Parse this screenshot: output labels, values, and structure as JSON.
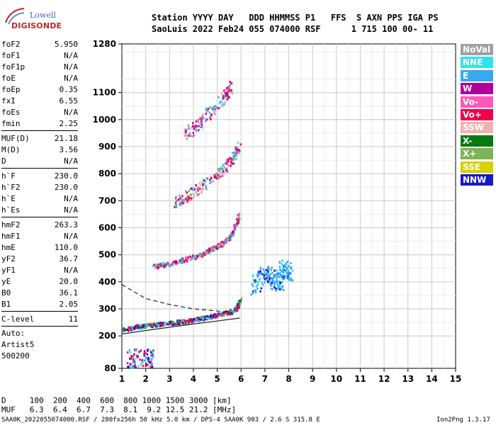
{
  "logo": {
    "line1": "Lowell",
    "line2": "DIGISONDE"
  },
  "header": {
    "labels": "Station YYYY DAY   DDD HHMMSS P1   FFS  S AXN PPS IGA PS",
    "values": "SaoLuis 2022 Feb24 055 074000 RSF      1 715 100 00- 11"
  },
  "params": {
    "group1": [
      {
        "label": "foF2",
        "value": "5.950"
      },
      {
        "label": "foF1",
        "value": "N/A"
      },
      {
        "label": "foF1p",
        "value": "N/A"
      },
      {
        "label": "foE",
        "value": "N/A"
      },
      {
        "label": "foEp",
        "value": "0.35"
      },
      {
        "label": "fxI",
        "value": "6.55"
      },
      {
        "label": "foEs",
        "value": "N/A"
      },
      {
        "label": "fmin",
        "value": "2.25"
      }
    ],
    "group2": [
      {
        "label": "MUF(D)",
        "value": "21.18"
      },
      {
        "label": "M(D)",
        "value": "3.56"
      },
      {
        "label": "D",
        "value": "N/A"
      }
    ],
    "group3": [
      {
        "label": "h`F",
        "value": "230.0"
      },
      {
        "label": "h`F2",
        "value": "230.0"
      },
      {
        "label": "h`E",
        "value": "N/A"
      },
      {
        "label": "h`Es",
        "value": "N/A"
      }
    ],
    "group4": [
      {
        "label": "hmF2",
        "value": "263.3"
      },
      {
        "label": "hmF1",
        "value": "N/A"
      },
      {
        "label": "hmE",
        "value": "110.0"
      },
      {
        "label": "yF2",
        "value": "36.7"
      },
      {
        "label": "yF1",
        "value": "N/A"
      },
      {
        "label": "yE",
        "value": "20.0"
      },
      {
        "label": "B0",
        "value": "36.1"
      },
      {
        "label": "B1",
        "value": "2.05"
      }
    ],
    "clevel": {
      "label": "C-level",
      "value": "11"
    },
    "auto": [
      "Auto:",
      "Artist5",
      "500200"
    ]
  },
  "legend": [
    {
      "label": "NoVal",
      "color": "#a0a0a0"
    },
    {
      "label": "NNE",
      "color": "#33e0f0"
    },
    {
      "label": "E",
      "color": "#3aa8f0"
    },
    {
      "label": "W",
      "color": "#b0009a"
    },
    {
      "label": "Vo-",
      "color": "#ff58b8"
    },
    {
      "label": "Vo+",
      "color": "#f0004a"
    },
    {
      "label": "SSW",
      "color": "#f4b0b0"
    },
    {
      "label": "X-",
      "color": "#0a7a10"
    },
    {
      "label": "X+",
      "color": "#7cb458"
    },
    {
      "label": "SSE",
      "color": "#d8d000"
    },
    {
      "label": "NNW",
      "color": "#1818c8"
    }
  ],
  "muf_table": {
    "d_row": "D     100  200  400  600  800 1000 1500 3000 [km]",
    "muf_row": "MUF   6.3  6.4  6.7  7.3  8.1  9.2 12.5 21.2 [MHz]"
  },
  "footer": {
    "left": "SAA0K_2022055074000.RSF / 280fx256h 50 kHz 5.0 km / DPS-4 SAA0K 903 / 2.6 S 315.8 E",
    "right": "Ion2Png 1.3.17"
  },
  "chart_data": {
    "type": "scatter",
    "xlim": [
      1,
      15
    ],
    "ylim": [
      80,
      1280
    ],
    "x_ticks": [
      1,
      2,
      3,
      4,
      5,
      6,
      7,
      8,
      9,
      10,
      11,
      12,
      13,
      14,
      15
    ],
    "y_ticks": [
      80,
      200,
      300,
      400,
      500,
      600,
      700,
      800,
      900,
      1000,
      1100,
      1280
    ],
    "grid": true,
    "x_unit": "MHz",
    "y_unit": "km",
    "traces": [
      {
        "name": "O-trace",
        "x": [
          1.0,
          1.5,
          2.0,
          2.5,
          3.0,
          3.5,
          4.0,
          4.5,
          5.0,
          5.5,
          5.8,
          5.95
        ],
        "y": [
          225,
          235,
          240,
          245,
          250,
          255,
          262,
          270,
          280,
          290,
          305,
          340
        ]
      },
      {
        "name": "F-echo-2hop",
        "x": [
          2.3,
          3.0,
          3.6,
          4.2,
          4.8,
          5.3,
          5.6,
          5.95
        ],
        "y": [
          458,
          470,
          485,
          500,
          525,
          550,
          580,
          660
        ]
      },
      {
        "name": "F-echo-3hop",
        "x": [
          3.2,
          3.8,
          4.4,
          5.0,
          5.5,
          5.9
        ],
        "y": [
          695,
          725,
          760,
          800,
          845,
          900
        ]
      },
      {
        "name": "F-echo-4hop",
        "x": [
          3.6,
          4.2,
          4.8,
          5.3,
          5.6
        ],
        "y": [
          940,
          990,
          1040,
          1090,
          1130
        ]
      },
      {
        "name": "spread-F",
        "x": [
          6.6,
          6.9,
          7.2,
          7.5,
          7.8,
          8.0
        ],
        "y": [
          380,
          440,
          425,
          395,
          455,
          430
        ]
      }
    ],
    "profile_curves": [
      {
        "name": "model-solid",
        "x": [
          1.0,
          2.0,
          3.0,
          4.0,
          5.0,
          5.6,
          5.95
        ],
        "y": [
          207,
          220,
          232,
          244,
          255,
          262,
          266
        ]
      },
      {
        "name": "model-dashed",
        "x": [
          1.0,
          2.0,
          3.0,
          4.0,
          5.0,
          5.6
        ],
        "y": [
          390,
          338,
          316,
          300,
          292,
          288
        ]
      }
    ]
  }
}
